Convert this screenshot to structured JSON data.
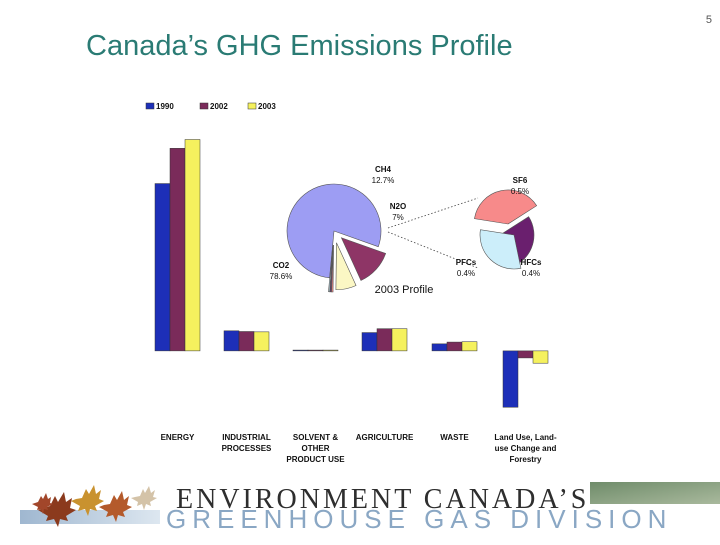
{
  "page_number": "5",
  "title": "Canada’s GHG Emissions Profile",
  "banner": {
    "top_text": "ENVIRONMENT CANADA’S",
    "bottom_text": "GREENHOUSE GAS DIVISION"
  },
  "colors": {
    "title": "#2a7b74",
    "s1990": "#1d2fb8",
    "s2002": "#7a2b5a",
    "s2003": "#f5f15e",
    "co2": "#9d9df3",
    "ch4": "#8e3566",
    "n2o": "#fbf7c4",
    "sf6": "#f78a8a",
    "pfcs": "#6a1f6e",
    "hfcs": "#cceefa"
  },
  "chart_data": [
    {
      "type": "bar",
      "legend": [
        "1990",
        "2002",
        "2003"
      ],
      "legend_position": "top-left",
      "categories": [
        [
          "ENERGY"
        ],
        [
          "INDUSTRIAL",
          "PROCESSES"
        ],
        [
          "SOLVENT &",
          "OTHER",
          "PRODUCT USE"
        ],
        [
          "AGRICULTURE"
        ],
        [
          "WASTE"
        ],
        [
          "Land Use, Land-",
          "use Change and",
          "Forestry"
        ]
      ],
      "series": [
        {
          "name": "1990",
          "values": [
            475,
            57,
            0.4,
            52,
            20,
            -160
          ]
        },
        {
          "name": "2002",
          "values": [
            575,
            55,
            0.4,
            63,
            25,
            -20
          ]
        },
        {
          "name": "2003",
          "values": [
            600,
            54,
            0.4,
            63,
            26,
            -35
          ]
        }
      ],
      "ylim": [
        -165,
        610
      ],
      "grid": false
    },
    {
      "type": "pie",
      "caption": "2003 Profile",
      "slices": [
        {
          "label": "CO2",
          "value_label": "78.6%",
          "value": 78.6
        },
        {
          "label": "CH4",
          "value_label": "12.7%",
          "value": 12.7
        },
        {
          "label": "N2O",
          "value_label": "7%",
          "value": 7.0
        },
        {
          "label": "SF6",
          "value_label": "0.5%",
          "value": 0.5
        },
        {
          "label": "PFCs",
          "value_label": "0.4%",
          "value": 0.4
        },
        {
          "label": "HFCs",
          "value_label": "0.4%",
          "value": 0.4
        }
      ],
      "exploded_detail": [
        "SF6",
        "PFCs",
        "HFCs"
      ]
    }
  ]
}
